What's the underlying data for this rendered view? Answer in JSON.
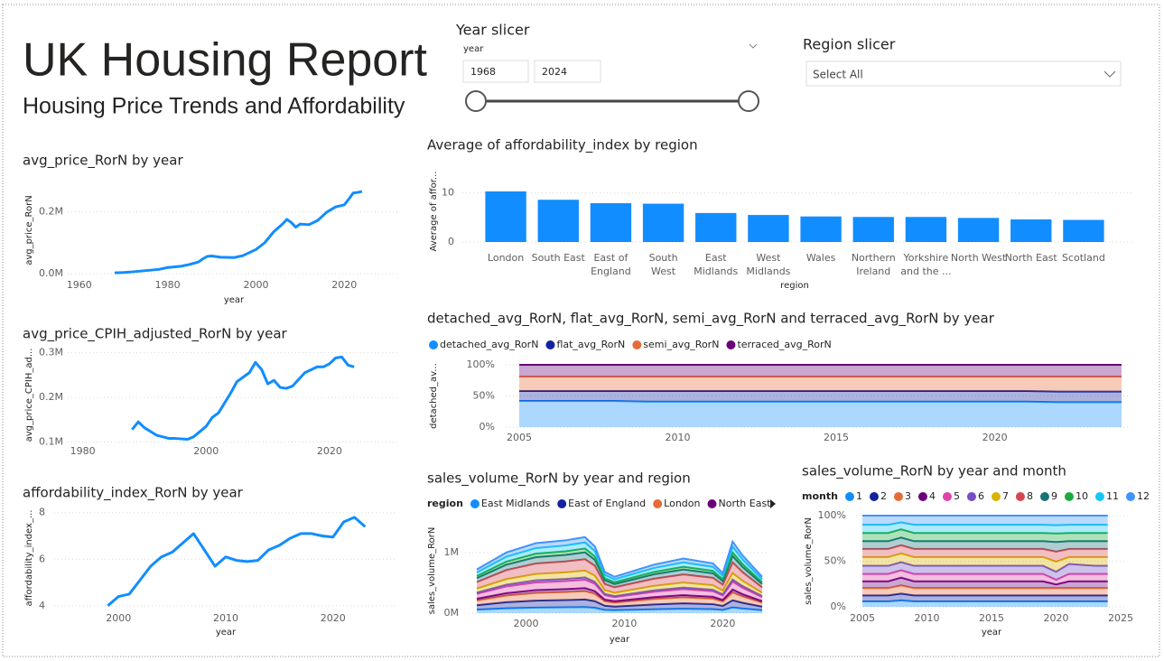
{
  "header": {
    "title": "UK Housing Report",
    "subtitle": "Housing Price Trends and Affordability"
  },
  "slicers": {
    "year": {
      "title": "Year slicer",
      "field": "year",
      "start": 1968,
      "end": 2024
    },
    "region": {
      "title": "Region slicer",
      "value": "Select All"
    }
  },
  "chart_data": [
    {
      "type": "line",
      "title": "avg_price_RorN by year",
      "x_label": "year",
      "y_label": "avg_price_RorN",
      "color": "#118DFF",
      "x": [
        1968,
        1970,
        1972,
        1975,
        1978,
        1980,
        1983,
        1985,
        1987,
        1988,
        1989,
        1990,
        1992,
        1995,
        1997,
        2000,
        2002,
        2004,
        2006,
        2007,
        2008,
        2009,
        2010,
        2012,
        2014,
        2016,
        2018,
        2020,
        2021,
        2022,
        2023,
        2024
      ],
      "values": [
        3000,
        4000,
        6000,
        10000,
        14000,
        20000,
        24000,
        30000,
        38000,
        48000,
        56000,
        57000,
        53000,
        52000,
        58000,
        78000,
        100000,
        135000,
        160000,
        175000,
        165000,
        150000,
        160000,
        158000,
        172000,
        198000,
        215000,
        222000,
        240000,
        260000,
        262000,
        265000
      ],
      "xlim": [
        1958,
        2032
      ],
      "xticks": [
        1960,
        1980,
        2000,
        2020
      ],
      "ylim": [
        -20000,
        300000
      ],
      "yticks": [
        {
          "value": 0,
          "label": "0.0M"
        },
        {
          "value": 200000,
          "label": "0.2M"
        }
      ],
      "grid": true
    },
    {
      "type": "line",
      "title": "avg_price_CPIH_adjusted_RorN by year",
      "y_label": "avg_price_CPIH_ad...",
      "color": "#118DFF",
      "x": [
        1988,
        1989,
        1990,
        1992,
        1994,
        1995,
        1997,
        1998,
        2000,
        2001,
        2002,
        2004,
        2005,
        2007,
        2008,
        2009,
        2010,
        2011,
        2012,
        2013,
        2014,
        2016,
        2018,
        2019,
        2020,
        2021,
        2022,
        2023,
        2024
      ],
      "values": [
        128000,
        145000,
        132000,
        115000,
        108000,
        108000,
        106000,
        112000,
        135000,
        155000,
        165000,
        210000,
        235000,
        255000,
        278000,
        262000,
        230000,
        238000,
        222000,
        220000,
        225000,
        255000,
        268000,
        268000,
        275000,
        288000,
        290000,
        272000,
        268000
      ],
      "xlim": [
        1978,
        2031
      ],
      "xticks": [
        1980,
        2000,
        2020
      ],
      "ylim": [
        95000,
        315000
      ],
      "yticks": [
        {
          "value": 100000,
          "label": "0.1M"
        },
        {
          "value": 200000,
          "label": "0.2M"
        },
        {
          "value": 300000,
          "label": "0.3M"
        }
      ],
      "grid": true
    },
    {
      "type": "line",
      "title": "affordability_index_RorN by year",
      "x_label": "year",
      "y_label": "affordability_index_...",
      "color": "#118DFF",
      "x": [
        1999,
        2000,
        2001,
        2002,
        2003,
        2004,
        2005,
        2006,
        2007,
        2008,
        2009,
        2010,
        2011,
        2012,
        2013,
        2014,
        2015,
        2016,
        2017,
        2018,
        2019,
        2020,
        2021,
        2022,
        2023
      ],
      "values": [
        4.0,
        4.4,
        4.5,
        5.1,
        5.7,
        6.1,
        6.3,
        6.7,
        7.1,
        6.4,
        5.7,
        6.1,
        5.95,
        5.9,
        5.95,
        6.4,
        6.6,
        6.9,
        7.1,
        7.1,
        7.0,
        6.95,
        7.6,
        7.8,
        7.4
      ],
      "xlim": [
        1994,
        2026
      ],
      "xticks": [
        2000,
        2010,
        2020
      ],
      "ylim": [
        3.8,
        8.3
      ],
      "yticks": [
        4,
        6,
        8
      ],
      "grid": true
    },
    {
      "type": "bar",
      "title": "Average of affordability_index by region",
      "x_label": "region",
      "y_label": "Average of affor...",
      "color": "#118DFF",
      "categories": [
        "London",
        "South East",
        "East of England",
        "South West",
        "East Midlands",
        "West Midlands",
        "Wales",
        "Northern Ireland",
        "Yorkshire and the ...",
        "North West",
        "North East",
        "Scotland"
      ],
      "values": [
        10.3,
        8.6,
        7.9,
        7.8,
        5.9,
        5.5,
        5.2,
        5.1,
        5.1,
        4.9,
        4.6,
        4.5
      ],
      "ylim": [
        0,
        12.5
      ],
      "yticks": [
        0,
        10
      ],
      "grid": true
    },
    {
      "type": "area",
      "title": "detached_avg_RorN, flat_avg_RorN, semi_avg_RorN and terraced_avg_RorN by year",
      "y_label": "detached_av...",
      "x": [
        2005,
        2006,
        2007,
        2008,
        2009,
        2010,
        2011,
        2012,
        2013,
        2014,
        2015,
        2016,
        2017,
        2018,
        2019,
        2020,
        2021,
        2022,
        2023,
        2024
      ],
      "series": [
        {
          "name": "detached_avg_RorN",
          "color": "#118DFF",
          "values": [
            42,
            42,
            42,
            42,
            41,
            41,
            41,
            41,
            41,
            41,
            41,
            41,
            41,
            41,
            41,
            41,
            41,
            40,
            40,
            40
          ]
        },
        {
          "name": "flat_avg_RorN",
          "color": "#12239E",
          "values": [
            16,
            16,
            16,
            16,
            17,
            17,
            17,
            17,
            17,
            17,
            17,
            17,
            17,
            17,
            17,
            17,
            17,
            17,
            17,
            17
          ]
        },
        {
          "name": "semi_avg_RorN",
          "color": "#E66C37",
          "values": [
            23,
            23,
            23,
            23,
            23,
            23,
            23,
            23,
            23,
            23,
            23,
            23,
            23,
            23,
            23,
            23,
            23,
            24,
            24,
            24
          ]
        },
        {
          "name": "terraced_avg_RorN",
          "color": "#6B007B",
          "values": [
            19,
            19,
            19,
            19,
            19,
            19,
            19,
            19,
            19,
            19,
            19,
            19,
            19,
            19,
            19,
            19,
            19,
            19,
            19,
            19
          ]
        }
      ],
      "xlim": [
        2005,
        2024
      ],
      "xticks": [
        2005,
        2010,
        2015,
        2020
      ],
      "ylim": [
        0,
        100
      ],
      "yticks": [
        {
          "value": 0,
          "label": "0%"
        },
        {
          "value": 50,
          "label": "50%"
        },
        {
          "value": 100,
          "label": "100%"
        }
      ],
      "grid": true
    },
    {
      "type": "area",
      "title": "sales_volume_RorN by year and region",
      "x_label": "year",
      "y_label": "sales_volume_RorN",
      "legend_title": "region",
      "x": [
        1995,
        1998,
        2001,
        2004,
        2006,
        2007,
        2008,
        2009,
        2013,
        2016,
        2019,
        2020,
        2021,
        2022,
        2024
      ],
      "series": [
        {
          "name": "East Midlands",
          "color": "#118DFF",
          "values": [
            58000,
            80000,
            92000,
            96000,
            100000,
            88000,
            54000,
            48000,
            64000,
            72000,
            66000,
            53000,
            94000,
            76000,
            48000
          ]
        },
        {
          "name": "East of England",
          "color": "#12239E",
          "values": [
            72000,
            100000,
            115000,
            120000,
            125000,
            110000,
            68000,
            60000,
            80000,
            90000,
            82000,
            66000,
            118000,
            95000,
            60000
          ]
        },
        {
          "name": "London",
          "color": "#E66C37",
          "values": [
            79000,
            110000,
            127000,
            132000,
            138000,
            121000,
            75000,
            66000,
            88000,
            99000,
            90000,
            73000,
            130000,
            105000,
            66000
          ]
        },
        {
          "name": "North East",
          "color": "#6B007B",
          "values": [
            29000,
            40000,
            46000,
            48000,
            50000,
            44000,
            27000,
            24000,
            32000,
            36000,
            33000,
            26000,
            47000,
            38000,
            24000
          ]
        },
        {
          "color": "#E044A7",
          "values": [
            79000,
            110000,
            127000,
            132000,
            138000,
            121000,
            75000,
            66000,
            88000,
            99000,
            90000,
            73000,
            130000,
            105000,
            66000
          ]
        },
        {
          "color": "#744EC2",
          "values": [
            22000,
            30000,
            35000,
            36000,
            38000,
            33000,
            20000,
            18000,
            24000,
            27000,
            25000,
            20000,
            35000,
            29000,
            18000
          ]
        },
        {
          "color": "#D9B300",
          "values": [
            65000,
            90000,
            104000,
            108000,
            113000,
            99000,
            61000,
            54000,
            72000,
            81000,
            74000,
            59000,
            106000,
            86000,
            54000
          ]
        },
        {
          "color": "#D64550",
          "values": [
            108000,
            150000,
            173000,
            180000,
            188000,
            165000,
            102000,
            90000,
            120000,
            135000,
            123000,
            99000,
            177000,
            143000,
            90000
          ]
        },
        {
          "color": "#197278",
          "values": [
            65000,
            90000,
            104000,
            108000,
            113000,
            99000,
            61000,
            54000,
            72000,
            81000,
            74000,
            59000,
            106000,
            86000,
            54000
          ]
        },
        {
          "color": "#1AAB40",
          "values": [
            36000,
            50000,
            58000,
            60000,
            63000,
            55000,
            34000,
            30000,
            40000,
            45000,
            41000,
            33000,
            59000,
            48000,
            30000
          ]
        },
        {
          "color": "#15C6F4",
          "values": [
            58000,
            80000,
            92000,
            96000,
            100000,
            88000,
            54000,
            48000,
            64000,
            72000,
            66000,
            53000,
            94000,
            76000,
            48000
          ]
        },
        {
          "color": "#4092FF",
          "values": [
            50000,
            70000,
            81000,
            84000,
            88000,
            77000,
            48000,
            42000,
            56000,
            63000,
            57000,
            46000,
            83000,
            67000,
            42000
          ]
        }
      ],
      "xlim": [
        1995,
        2024
      ],
      "xticks": [
        2000,
        2010,
        2020
      ],
      "ylim": [
        0,
        1400000
      ],
      "yticks": [
        {
          "value": 0,
          "label": "0M"
        },
        {
          "value": 1000000,
          "label": "1M"
        }
      ],
      "grid": true
    },
    {
      "type": "area",
      "title": "sales_volume_RorN by year and month",
      "x_label": "year",
      "y_label": "sales_volume_RorN",
      "legend_title": "month",
      "x": [
        2005,
        2007,
        2008,
        2009,
        2011,
        2013,
        2015,
        2017,
        2019,
        2020,
        2021,
        2023,
        2024
      ],
      "series": [
        {
          "name": "1",
          "color": "#118DFF",
          "values": [
            6,
            6,
            7,
            6,
            6,
            6,
            6,
            6,
            6,
            6,
            6,
            6,
            6
          ]
        },
        {
          "name": "2",
          "color": "#12239E",
          "values": [
            6.5,
            6.5,
            7.5,
            6.5,
            6.5,
            6.5,
            6.5,
            6.5,
            6.5,
            6.5,
            6.5,
            6.5,
            6.5
          ]
        },
        {
          "name": "3",
          "color": "#E66C37",
          "values": [
            8,
            8,
            9,
            8,
            8,
            8,
            8,
            8,
            8,
            8,
            8,
            8,
            8
          ]
        },
        {
          "name": "4",
          "color": "#6B007B",
          "values": [
            7.5,
            7.5,
            8.5,
            7.5,
            7.5,
            7.5,
            7.5,
            7.5,
            7.5,
            4,
            7.5,
            7.5,
            7.5
          ]
        },
        {
          "name": "5",
          "color": "#E044A7",
          "values": [
            8,
            8,
            8,
            8,
            8,
            8,
            8,
            8,
            8,
            5,
            8,
            8,
            8
          ]
        },
        {
          "name": "6",
          "color": "#744EC2",
          "values": [
            9,
            9,
            9,
            9,
            9,
            9,
            9,
            9,
            9,
            9,
            11,
            9,
            9
          ]
        },
        {
          "name": "7",
          "color": "#D9B300",
          "values": [
            9.5,
            9.5,
            9.5,
            9.5,
            9.5,
            9.5,
            9.5,
            9.5,
            9.5,
            11,
            7.5,
            9.5,
            9.5
          ]
        },
        {
          "name": "8",
          "color": "#D64550",
          "values": [
            9,
            9,
            9,
            9,
            9,
            9,
            9,
            9,
            9,
            11,
            9,
            9,
            9
          ]
        },
        {
          "name": "9",
          "color": "#197278",
          "values": [
            8.5,
            8.5,
            8.5,
            8.5,
            8.5,
            8.5,
            8.5,
            8.5,
            8.5,
            10.5,
            8.5,
            8.5,
            8.5
          ]
        },
        {
          "name": "10",
          "color": "#1AAB40",
          "values": [
            9,
            9,
            9,
            9,
            9,
            9,
            9,
            9,
            9,
            9.5,
            9,
            9,
            9
          ]
        },
        {
          "name": "11",
          "color": "#15C6F4",
          "values": [
            9,
            9,
            7.5,
            9,
            9,
            9,
            9,
            9,
            9,
            9,
            9,
            9,
            9
          ]
        },
        {
          "name": "12",
          "color": "#4092FF",
          "values": [
            10,
            10,
            7.5,
            10,
            10,
            10,
            10,
            10,
            10,
            10.5,
            10,
            10,
            10
          ]
        }
      ],
      "xlim": [
        2005,
        2025
      ],
      "xticks": [
        2005,
        2010,
        2015,
        2020,
        2025
      ],
      "ylim": [
        0,
        100
      ],
      "yticks": [
        {
          "value": 0,
          "label": "0%"
        },
        {
          "value": 50,
          "label": "50%"
        },
        {
          "value": 100,
          "label": "100%"
        }
      ],
      "grid": true
    }
  ]
}
